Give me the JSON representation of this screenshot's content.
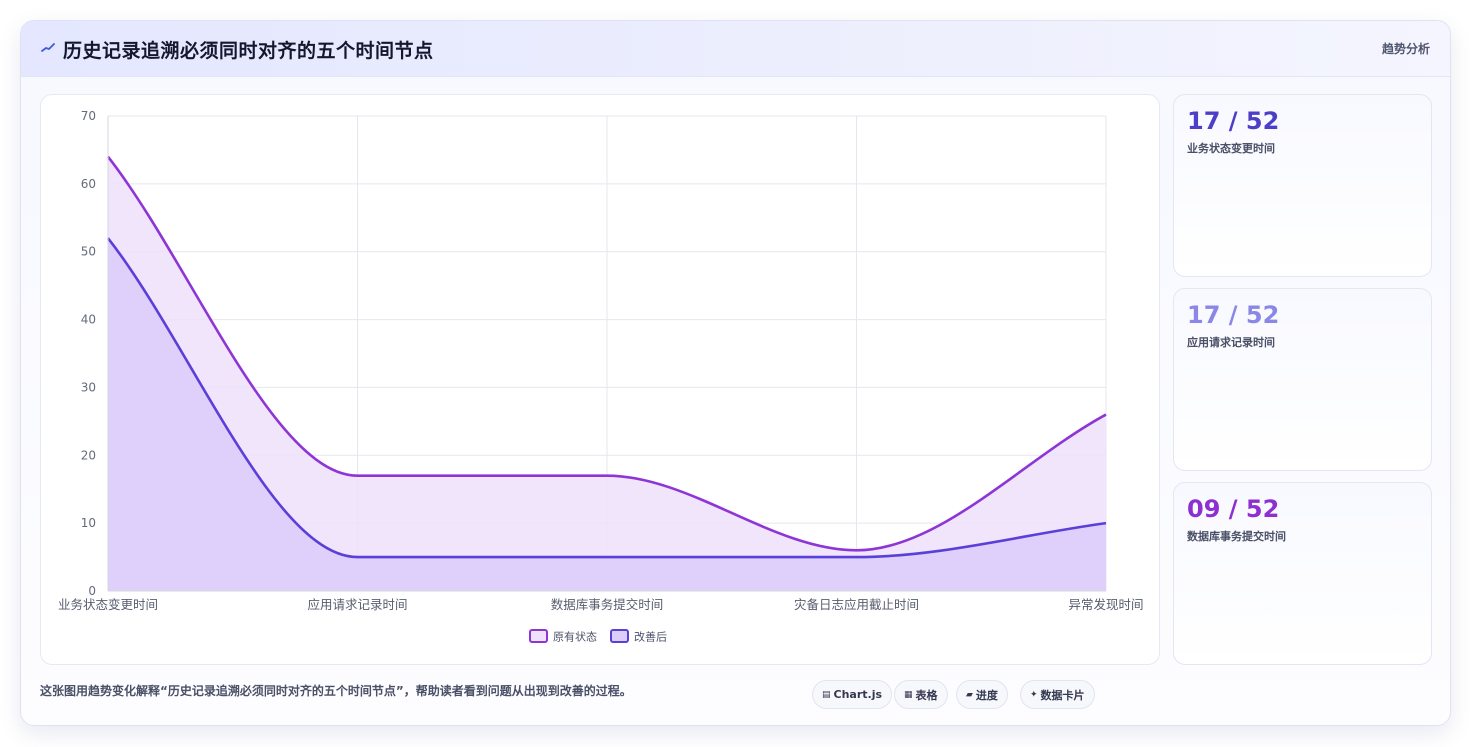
{
  "header": {
    "title": "历史记录追溯必须同时对齐的五个时间节点",
    "right_link": "趋势分析"
  },
  "chart_data": {
    "type": "area",
    "categories": [
      "业务状态变更时间",
      "应用请求记录时间",
      "数据库事务提交时间",
      "灾备日志应用截止时间",
      "异常发现时间"
    ],
    "series": [
      {
        "name": "原有状态",
        "values": [
          64,
          17,
          17,
          6,
          26
        ],
        "color": "#8e35d6",
        "fill": "#efe1fb"
      },
      {
        "name": "改善后",
        "values": [
          52,
          5,
          5,
          5,
          10
        ],
        "color": "#5a3fd8",
        "fill": "#dccdfa"
      }
    ],
    "ylim": [
      0,
      70
    ],
    "yticks": [
      0,
      10,
      20,
      30,
      40,
      50,
      60,
      70
    ],
    "grid": true,
    "legend": "bottom",
    "xlabel": "",
    "ylabel": ""
  },
  "stats": [
    {
      "value": "17 / 52",
      "label": "业务状态变更时间",
      "color": "#4d3ec9"
    },
    {
      "value": "17 / 52",
      "label": "应用请求记录时间",
      "color": "#8a87e6"
    },
    {
      "value": "09 / 52",
      "label": "数据库事务提交时间",
      "color": "#8e2fd0"
    }
  ],
  "footer": {
    "text": "这张图用趋势变化解释“历史记录追溯必须同时对齐的五个时间节点”，帮助读者看到问题从出现到改善的过程。",
    "chips": [
      {
        "icon": "▤",
        "label": "Chart.js"
      },
      {
        "icon": "▦",
        "label": "表格"
      },
      {
        "icon": "▰",
        "label": "进度"
      },
      {
        "icon": "✦",
        "label": "数据卡片"
      }
    ]
  }
}
